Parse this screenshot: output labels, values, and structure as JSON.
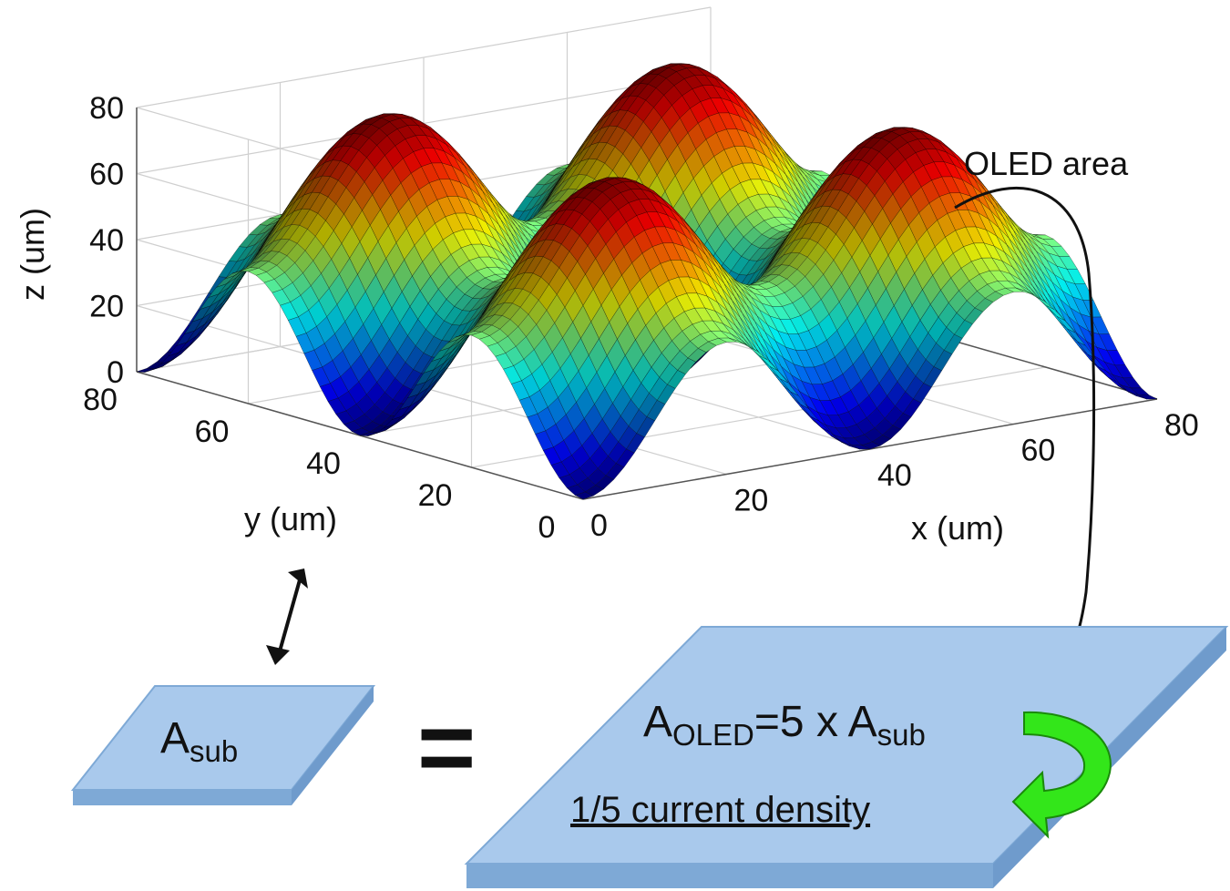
{
  "chart_data": {
    "type": "surface",
    "title": "",
    "xlabel": "x (um)",
    "ylabel": "y (um)",
    "zlabel": "z (um)",
    "x_ticks": [
      "0",
      "20",
      "40",
      "60",
      "80"
    ],
    "y_ticks": [
      "0",
      "20",
      "40",
      "60",
      "80"
    ],
    "z_ticks": [
      "0",
      "20",
      "40",
      "60",
      "80"
    ],
    "xlim": [
      0,
      80
    ],
    "ylim": [
      0,
      80
    ],
    "zlim": [
      0,
      80
    ],
    "surface": "z = 20*(2 - cos(2*pi*x/40) - cos(2*pi*y/40)) (periodic bumps, range 0 to 80)",
    "period_um": 40,
    "colormap": "jet",
    "grid": true
  },
  "annotations": {
    "oled_area": "OLED area",
    "a_sub_main": "A",
    "a_sub_sub": "sub",
    "equals": "=",
    "a_oled_main": "A",
    "a_oled_sub": "OLED",
    "eq_rest": "=5 x A",
    "eq_sub": "sub",
    "current_density": "1/5 current density"
  },
  "colors": {
    "plate_top": "#a9c9ec",
    "plate_side": "#7ea9d6",
    "plate_edge": "#6f9bcc",
    "green_arrow": "#33e61a",
    "green_arrow_edge": "#1a8a0a"
  }
}
